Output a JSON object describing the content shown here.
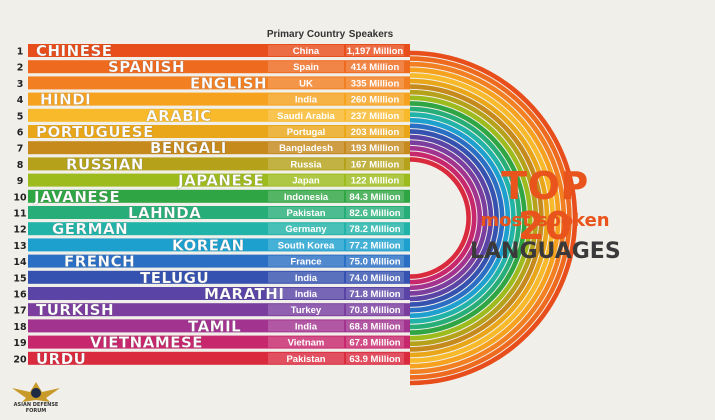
{
  "chart_data": {
    "type": "bar",
    "title": "TOP 20",
    "subtitle": "most spoken",
    "subtitle2": "LANGUAGES",
    "column_headers": [
      "Primary Country",
      "Speakers"
    ],
    "ranks": [
      "1",
      "2",
      "3",
      "4",
      "5",
      "6",
      "7",
      "8",
      "9",
      "10",
      "11",
      "12",
      "13",
      "14",
      "15",
      "16",
      "17",
      "18",
      "19",
      "20"
    ],
    "categories": [
      "CHINESE",
      "SPANISH",
      "ENGLISH",
      "HINDI",
      "ARABIC",
      "PORTUGUESE",
      "BENGALI",
      "RUSSIAN",
      "JAPANESE",
      "JAVANESE",
      "LAHNDA",
      "GERMAN",
      "KOREAN",
      "FRENCH",
      "TELUGU",
      "MARATHI",
      "TURKISH",
      "TAMIL",
      "VIETNAMESE",
      "URDU"
    ],
    "countries": [
      "China",
      "Spain",
      "UK",
      "India",
      "Saudi Arabia",
      "Portugal",
      "Bangladesh",
      "Russia",
      "Japan",
      "Indonesia",
      "Pakistan",
      "Germany",
      "South Korea",
      "France",
      "India",
      "India",
      "Turkey",
      "India",
      "Vietnam",
      "Pakistan"
    ],
    "speaker_labels": [
      "1,197 Million",
      "414 Million",
      "335 Million",
      "260 Million",
      "237 Million",
      "203 Million",
      "193 Million",
      "167 Million",
      "122 Million",
      "84.3 Million",
      "82.6 Million",
      "78.2 Million",
      "77.2 Million",
      "75.0 Million",
      "74.0 Million",
      "71.8 Million",
      "70.8 Million",
      "68.8 Million",
      "67.8 Million",
      "63.9 Million"
    ],
    "values": [
      1197,
      414,
      335,
      260,
      237,
      203,
      193,
      167,
      122,
      84.3,
      82.6,
      78.2,
      77.2,
      75.0,
      74.0,
      71.8,
      70.8,
      68.8,
      67.8,
      63.9
    ],
    "unit": "Million",
    "colors": [
      "#e84e1b",
      "#ee6a1f",
      "#f27f22",
      "#f6a21e",
      "#f8b92a",
      "#e9a619",
      "#c5891c",
      "#b5a21a",
      "#9dbb1c",
      "#2fa544",
      "#27ae78",
      "#21b3a8",
      "#1ea0cf",
      "#2b6fc4",
      "#3652b0",
      "#5a45a6",
      "#7b3e9f",
      "#a2338f",
      "#c7276c",
      "#d92a3e"
    ],
    "logo_text": "ASIAN DEFENSE FORUM"
  }
}
